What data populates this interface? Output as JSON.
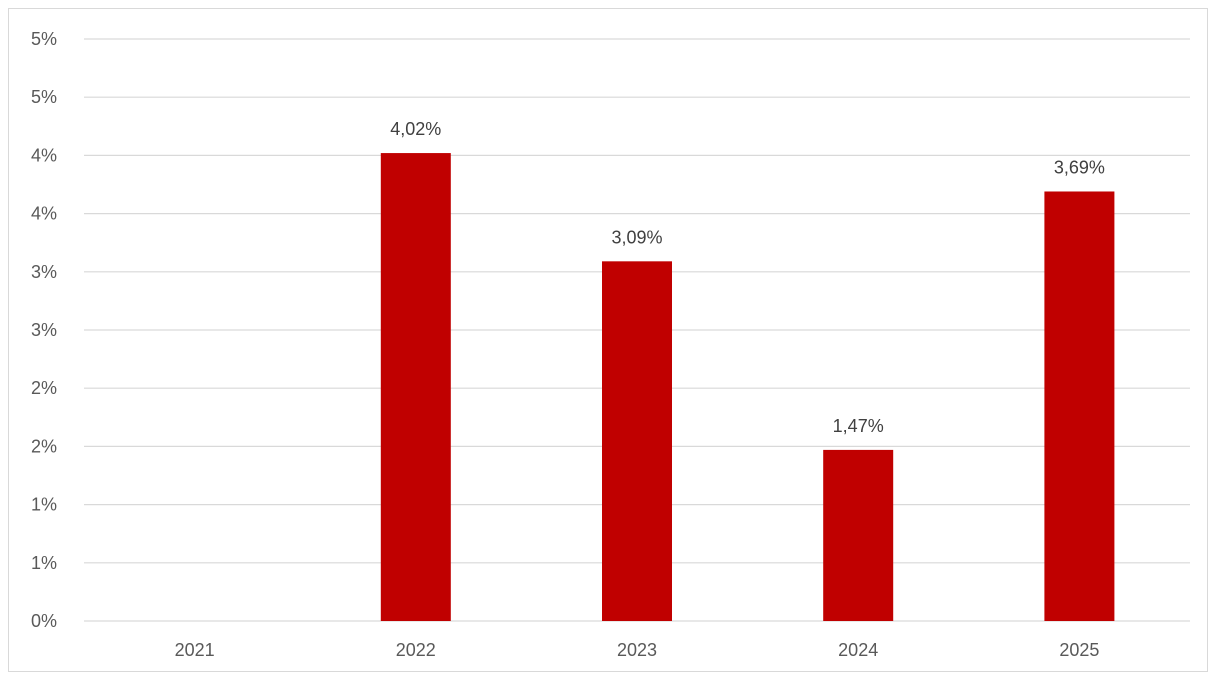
{
  "chart_data": {
    "type": "bar",
    "categories": [
      "2021",
      "2022",
      "2023",
      "2024",
      "2025"
    ],
    "values": [
      0,
      4.02,
      3.09,
      1.47,
      3.69
    ],
    "data_labels": [
      "",
      "4,02%",
      "3,09%",
      "1,47%",
      "3,69%"
    ],
    "title": "",
    "xlabel": "",
    "ylabel": "",
    "ylim": [
      0,
      5
    ],
    "ytick_values": [
      0,
      0.5,
      1,
      1.5,
      2,
      2.5,
      3,
      3.5,
      4,
      4.5,
      5
    ],
    "ytick_labels": [
      "0%",
      "1%",
      "1%",
      "2%",
      "2%",
      "3%",
      "3%",
      "4%",
      "4%",
      "5%",
      "5%"
    ],
    "grid": true,
    "legend": "none",
    "colors": {
      "bar": "#C00000",
      "grid": "#d9d9d9",
      "text": "#595959"
    }
  }
}
